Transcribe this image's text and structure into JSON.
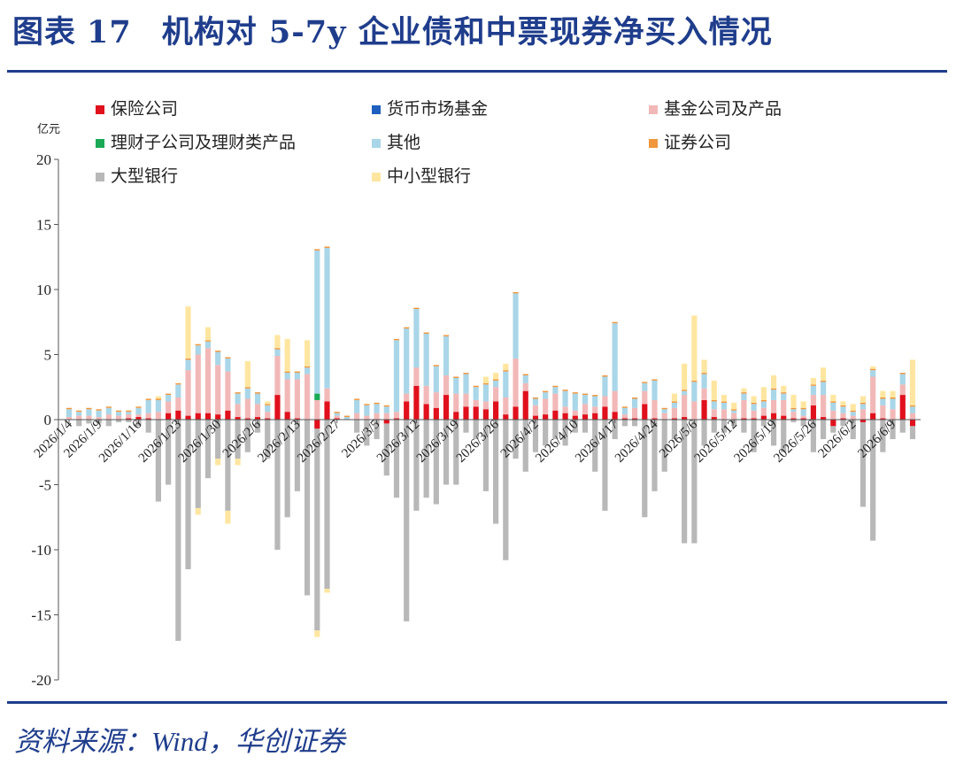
{
  "header": {
    "figure_label": "图表",
    "figure_number": "17",
    "title": "机构对 5-7y 企业债和中票现券净买入情况"
  },
  "footer": {
    "source": "资料来源：Wind，华创证券"
  },
  "chart_data": {
    "type": "bar",
    "stacked": true,
    "y_unit": "亿元",
    "ylim": [
      -20,
      20
    ],
    "y_ticks": [
      "-20",
      "-15",
      "-10",
      "-5",
      "0",
      "5",
      "10",
      "15",
      "20"
    ],
    "grid": false,
    "legend_position": "top-left",
    "x_tick_labels": [
      "2026/1/4",
      "2026/1/9",
      "2026/1/16",
      "2026/1/23",
      "2026/1/30",
      "2026/2/6",
      "2026/2/13",
      "2026/2/27",
      "2026/3/5",
      "2026/3/12",
      "2026/3/19",
      "2026/3/26",
      "2026/4/2",
      "2026/4/10",
      "2026/4/17",
      "2026/4/24",
      "2026/5/6",
      "2026/5/12",
      "2026/5/19",
      "2026/5/26",
      "2026/6/2",
      "2026/6/9"
    ],
    "x_tick_positions": [
      0,
      3,
      7,
      11,
      15,
      19,
      23,
      27,
      31,
      35,
      39,
      43,
      47,
      51,
      55,
      59,
      63,
      67,
      71,
      75,
      79,
      83
    ],
    "n_bars": 86,
    "series": [
      {
        "name": "保险公司",
        "color": "#e0101c",
        "values": [
          0,
          0,
          0,
          0,
          0,
          0,
          0.1,
          0.2,
          0.1,
          0,
          0.5,
          0.7,
          0.3,
          0.5,
          0.5,
          0.4,
          0.7,
          0.2,
          0.1,
          0.2,
          0.1,
          1.9,
          0.6,
          0.1,
          0,
          -0.7,
          1.4,
          0.1,
          0,
          0,
          0,
          0,
          -0.3,
          0.1,
          1.4,
          2.6,
          1.2,
          0.9,
          1.9,
          0.6,
          1.0,
          1.0,
          0.8,
          1.4,
          0.4,
          1.0,
          2.2,
          0.3,
          0.4,
          0.7,
          0.5,
          0.3,
          0.4,
          0.5,
          1.0,
          0.6,
          0.1,
          0.1,
          1.2,
          0.1,
          0,
          0.1,
          0.2,
          0,
          1.5,
          0.2,
          0,
          0,
          0.1,
          0.1,
          0.3,
          0.5,
          0.3,
          0.1,
          0.1,
          1.1,
          0.2,
          -0.5,
          0.1,
          0,
          -0.2,
          0.5,
          0.1,
          0,
          1.9,
          -0.5
        ]
      },
      {
        "name": "货币市场基金",
        "color": "#1f5fbf",
        "values": [
          0,
          0,
          0,
          0,
          0,
          0,
          0,
          0,
          0,
          0,
          0,
          0,
          0,
          0,
          0,
          0,
          0,
          0,
          0,
          0,
          0,
          0,
          0,
          0,
          0,
          0,
          0,
          0,
          0,
          0,
          0,
          0,
          0,
          0,
          0,
          0,
          0,
          0,
          0,
          0,
          0,
          0,
          0,
          0,
          0,
          0,
          0,
          0,
          0,
          0,
          0,
          0,
          0,
          0,
          0,
          0,
          0,
          0,
          0,
          0,
          0,
          0,
          0,
          0,
          0,
          0,
          0,
          0,
          0,
          0,
          0,
          0,
          0,
          0,
          0,
          0,
          0,
          0,
          0,
          0,
          0,
          0,
          0,
          0,
          0,
          0
        ]
      },
      {
        "name": "基金公司及产品",
        "color": "#f2b8b8",
        "values": [
          0.2,
          0.3,
          0.3,
          0.2,
          0.4,
          0.3,
          0.3,
          0.2,
          0.4,
          0.6,
          0.9,
          1.0,
          3.5,
          4.5,
          5.0,
          3.8,
          3.0,
          1.0,
          1.5,
          1.0,
          0.5,
          3.0,
          2.5,
          3.0,
          3.5,
          1.5,
          1.0,
          0.2,
          0,
          0.5,
          0.3,
          0.5,
          0.5,
          0.5,
          0.6,
          1.4,
          1.4,
          1.2,
          1.5,
          1.4,
          1.0,
          0.5,
          0.6,
          1.1,
          1.3,
          3.7,
          0.6,
          0.8,
          1.2,
          1.3,
          0.5,
          0.4,
          0.8,
          0.5,
          0.8,
          1.6,
          0.3,
          0.8,
          1.0,
          1.4,
          0.5,
          0.8,
          1.7,
          1.4,
          0.9,
          0.6,
          0.8,
          0.5,
          1.4,
          0.6,
          0.6,
          1.0,
          1.2,
          0.5,
          0.2,
          0.8,
          1.7,
          0.7,
          0.4,
          0.3,
          0.8,
          2.8,
          1.0,
          0.8,
          0.8,
          0.5
        ]
      },
      {
        "name": "理财子公司及理财类产品",
        "color": "#1aaa55",
        "values": [
          0,
          0,
          0,
          0,
          0,
          0,
          0,
          0,
          0,
          0,
          0,
          0,
          0,
          0,
          0,
          0,
          0,
          0,
          0,
          0,
          0,
          0,
          0,
          0,
          0,
          0.5,
          0,
          0,
          0,
          0,
          0,
          0,
          0,
          0,
          0,
          0,
          0,
          0,
          0,
          0,
          0,
          0,
          0,
          0,
          0,
          0,
          0,
          0,
          0,
          0,
          0,
          0,
          0,
          0,
          0,
          0,
          0,
          0,
          0,
          0,
          0,
          0,
          0,
          0,
          0,
          0,
          0,
          0,
          0,
          0,
          0,
          0,
          0,
          0,
          0,
          0,
          0,
          0,
          0,
          0,
          0,
          0,
          0,
          0,
          0,
          0
        ]
      },
      {
        "name": "其他",
        "color": "#a9d6e8",
        "values": [
          0.6,
          0.3,
          0.5,
          0.5,
          0.5,
          0.3,
          0.2,
          0.5,
          1.0,
          0.9,
          0.5,
          1.0,
          0.8,
          0.7,
          0.5,
          1.0,
          1.0,
          0.8,
          0.8,
          0.8,
          0.5,
          0.5,
          0.5,
          0.5,
          0.5,
          11.0,
          10.8,
          0.2,
          0.2,
          1.0,
          0.8,
          0.7,
          0.5,
          5.5,
          5.0,
          4.5,
          4.0,
          2.0,
          3.0,
          1.2,
          1.5,
          1.0,
          1.3,
          0.5,
          2.0,
          5.0,
          0.6,
          0.5,
          0.5,
          0.5,
          1.2,
          1.3,
          0.7,
          0.8,
          1.5,
          5.2,
          0.5,
          0.7,
          0.6,
          1.5,
          0.3,
          0.4,
          0.3,
          1.5,
          1.1,
          0.6,
          0.5,
          0.2,
          0.5,
          0.5,
          0.5,
          0.8,
          0.5,
          0.2,
          0.5,
          0.7,
          1.0,
          0.6,
          0.5,
          0.3,
          0.4,
          0.5,
          0.5,
          0.8,
          0.8,
          0.5
        ]
      },
      {
        "name": "证券公司",
        "color": "#f0963c",
        "values": [
          0.1,
          0.1,
          0.1,
          0.1,
          0.1,
          0.1,
          0.1,
          0.1,
          0.1,
          0.1,
          0.1,
          0.1,
          0.1,
          0.1,
          0.1,
          0.1,
          0.1,
          0.1,
          0.1,
          0.1,
          0.1,
          0.1,
          0.1,
          0.1,
          0.1,
          0.1,
          0.1,
          0.1,
          0.1,
          0.1,
          0.1,
          0.1,
          0.1,
          0.1,
          0.1,
          0.1,
          0.1,
          0.1,
          0.1,
          0.1,
          0.1,
          0.1,
          0.1,
          0.1,
          0.1,
          0.1,
          0.1,
          0.1,
          0.1,
          0.1,
          0.1,
          0.1,
          0.1,
          0.1,
          0.1,
          0.1,
          0.1,
          0.1,
          0.1,
          0.1,
          0.1,
          0.1,
          0.1,
          0.1,
          0.1,
          0.1,
          0.1,
          0.1,
          0.1,
          0.1,
          0.1,
          0.1,
          0.1,
          0.1,
          0.1,
          0.1,
          0.1,
          0.1,
          0.1,
          0.1,
          0.1,
          0.1,
          0.1,
          0.1,
          0.1,
          0.1
        ]
      },
      {
        "name": "大型银行",
        "color": "#b8b8b8",
        "values": [
          0,
          -0.5,
          -0.3,
          -0.3,
          -0.5,
          -0.2,
          -0.2,
          -0.5,
          -1.0,
          -6.3,
          -5.0,
          -17.0,
          -11.5,
          -6.8,
          -4.5,
          -3.0,
          -7.0,
          -3.0,
          -2.5,
          -1.0,
          -3.0,
          -10.0,
          -7.5,
          -5.5,
          -13.5,
          -15.5,
          -13.0,
          0,
          0,
          -1.0,
          -2.0,
          -1.5,
          -4.0,
          -6.0,
          -15.5,
          -7.0,
          -6.0,
          -6.5,
          -5.0,
          -5.0,
          -1.0,
          -1.5,
          -5.5,
          -8.0,
          -10.8,
          -3.0,
          -4.0,
          -2.5,
          -2.0,
          -1.5,
          -2.0,
          -1.0,
          -1.0,
          -4.0,
          -7.0,
          -1.5,
          -0.5,
          -0.5,
          -7.5,
          -5.5,
          -4.0,
          -1.5,
          -9.5,
          -9.5,
          -2.0,
          -1.0,
          -1.0,
          -0.5,
          -1.0,
          -2.5,
          -0.5,
          -2.0,
          -2.5,
          -0.2,
          -0.5,
          -2.5,
          -1.5,
          -0.5,
          -0.5,
          -1.5,
          -6.5,
          -9.3,
          -2.5,
          -1.5,
          -1.0,
          -1.0
        ]
      },
      {
        "name": "中小型银行",
        "color": "#ffe6a0",
        "values": [
          0,
          0,
          0,
          0,
          0,
          0,
          0,
          0,
          0,
          0.2,
          0,
          0,
          4.0,
          -0.5,
          1.0,
          -0.5,
          -1.0,
          -0.5,
          2.0,
          0,
          0.2,
          1.0,
          2.5,
          0,
          2.0,
          -0.5,
          -0.3,
          0,
          0,
          0,
          0,
          0,
          0,
          0,
          0,
          0,
          0,
          0,
          0,
          0,
          0,
          0,
          0.5,
          0.5,
          0.5,
          0,
          0,
          0,
          0,
          0,
          0,
          0,
          0,
          0,
          0,
          0,
          0,
          0,
          0,
          0,
          0,
          0.6,
          2.0,
          5.0,
          1.0,
          1.5,
          0.5,
          0.5,
          0.3,
          0.5,
          1.0,
          1.0,
          0.5,
          1.0,
          0.5,
          0.5,
          1.0,
          0.5,
          0.3,
          0.5,
          0.5,
          0.2,
          0.5,
          0.5,
          0,
          3.5
        ]
      }
    ]
  }
}
